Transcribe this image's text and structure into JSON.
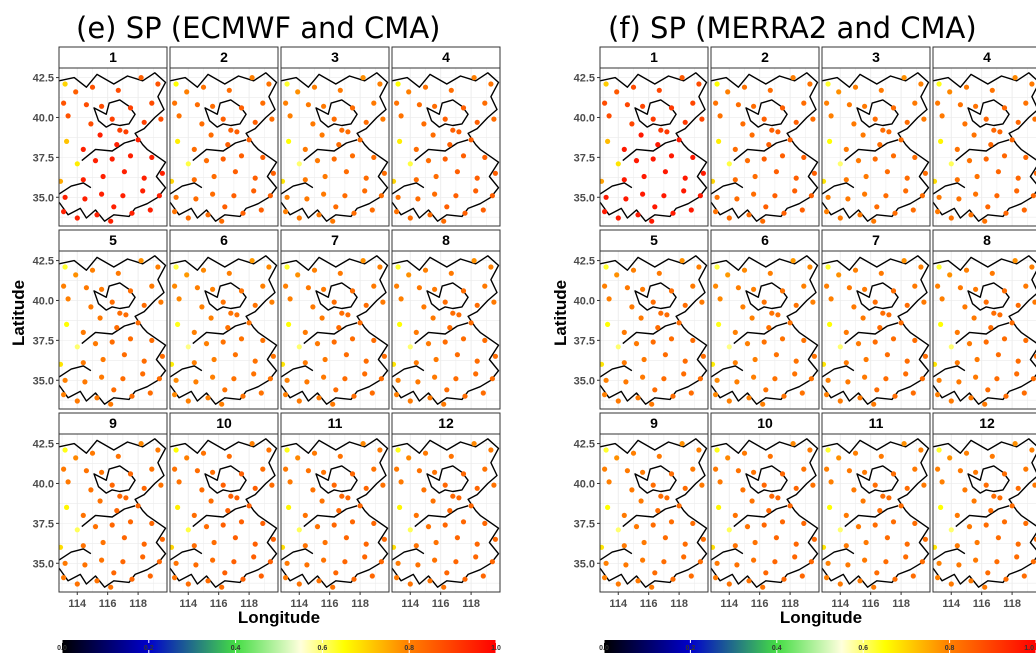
{
  "chart_data": [
    {
      "type": "scatter",
      "title": "(e) SP (ECMWF and CMA)",
      "xlabel": "Longitude",
      "ylabel": "Latitude",
      "facets": [
        "1",
        "2",
        "3",
        "4",
        "5",
        "6",
        "7",
        "8",
        "9",
        "10",
        "11",
        "12"
      ],
      "xlim": [
        112.8,
        119.9
      ],
      "ylim": [
        33.2,
        43.1
      ],
      "xticks": [
        114,
        116,
        118
      ],
      "yticks": [
        35.0,
        37.5,
        40.0,
        42.5
      ],
      "xtick_labels": [
        "114",
        "116",
        "118"
      ],
      "ytick_labels": [
        "35.0",
        "37.5",
        "40.0",
        "42.5"
      ],
      "colorbar": {
        "range": [
          0,
          1
        ],
        "tick_labels": [
          "0.0",
          "0.2",
          "0.4",
          "0.6",
          "0.8",
          "1.0"
        ]
      },
      "month_level": [
        0.85,
        0.8,
        0.78,
        0.8,
        0.78,
        0.77,
        0.78,
        0.78,
        0.79,
        0.8,
        0.79,
        0.79
      ]
    },
    {
      "type": "scatter",
      "title": "(f) SP (MERRA2 and CMA)",
      "xlabel": "Longitude",
      "ylabel": "Latitude",
      "facets": [
        "1",
        "2",
        "3",
        "4",
        "5",
        "6",
        "7",
        "8",
        "9",
        "10",
        "11",
        "12"
      ],
      "xlim": [
        112.8,
        119.9
      ],
      "ylim": [
        33.2,
        43.1
      ],
      "xticks": [
        114,
        116,
        118
      ],
      "yticks": [
        35.0,
        37.5,
        40.0,
        42.5
      ],
      "xtick_labels": [
        "114",
        "116",
        "118"
      ],
      "ytick_labels": [
        "35.0",
        "37.5",
        "40.0",
        "42.5"
      ],
      "colorbar": {
        "range": [
          0,
          1
        ],
        "tick_labels": [
          "0.0",
          "0.2",
          "0.4",
          "0.6",
          "0.8",
          "1.0"
        ]
      },
      "month_level": [
        0.86,
        0.8,
        0.78,
        0.79,
        0.78,
        0.77,
        0.78,
        0.78,
        0.78,
        0.79,
        0.78,
        0.78
      ]
    }
  ],
  "stations": [
    {
      "lon": 113.2,
      "lat": 42.1,
      "d": -0.15
    },
    {
      "lon": 113.9,
      "lat": 41.6,
      "d": 0.0
    },
    {
      "lon": 115.0,
      "lat": 41.9,
      "d": 0.02
    },
    {
      "lon": 116.7,
      "lat": 41.7,
      "d": 0.03
    },
    {
      "lon": 118.2,
      "lat": 42.5,
      "d": 0.0
    },
    {
      "lon": 119.3,
      "lat": 42.1,
      "d": 0.02
    },
    {
      "lon": 113.1,
      "lat": 40.9,
      "d": 0.02
    },
    {
      "lon": 114.6,
      "lat": 40.8,
      "d": 0.03
    },
    {
      "lon": 115.6,
      "lat": 40.7,
      "d": 0.03
    },
    {
      "lon": 117.5,
      "lat": 40.6,
      "d": 0.05
    },
    {
      "lon": 118.9,
      "lat": 40.9,
      "d": 0.03
    },
    {
      "lon": 113.4,
      "lat": 40.1,
      "d": 0.02
    },
    {
      "lon": 114.9,
      "lat": 39.6,
      "d": 0.03
    },
    {
      "lon": 116.3,
      "lat": 39.9,
      "d": 0.05
    },
    {
      "lon": 116.8,
      "lat": 39.2,
      "d": 0.05
    },
    {
      "lon": 117.2,
      "lat": 39.1,
      "d": 0.05
    },
    {
      "lon": 118.4,
      "lat": 39.7,
      "d": 0.05
    },
    {
      "lon": 119.5,
      "lat": 39.9,
      "d": 0.03
    },
    {
      "lon": 113.3,
      "lat": 38.5,
      "d": -0.13
    },
    {
      "lon": 114.4,
      "lat": 38.0,
      "d": 0.03
    },
    {
      "lon": 115.5,
      "lat": 38.9,
      "d": 0.03
    },
    {
      "lon": 116.6,
      "lat": 38.3,
      "d": 0.05
    },
    {
      "lon": 118.0,
      "lat": 38.6,
      "d": 0.05
    },
    {
      "lon": 114.0,
      "lat": 37.1,
      "d": -0.18
    },
    {
      "lon": 115.2,
      "lat": 37.3,
      "d": 0.03
    },
    {
      "lon": 116.3,
      "lat": 37.4,
      "d": 0.05
    },
    {
      "lon": 117.5,
      "lat": 37.6,
      "d": 0.05
    },
    {
      "lon": 118.9,
      "lat": 37.5,
      "d": 0.05
    },
    {
      "lon": 112.9,
      "lat": 36.0,
      "d": -0.1
    },
    {
      "lon": 114.4,
      "lat": 36.1,
      "d": 0.03
    },
    {
      "lon": 115.7,
      "lat": 36.3,
      "d": 0.03
    },
    {
      "lon": 117.1,
      "lat": 36.6,
      "d": 0.05
    },
    {
      "lon": 118.4,
      "lat": 36.2,
      "d": 0.05
    },
    {
      "lon": 119.6,
      "lat": 36.5,
      "d": 0.05
    },
    {
      "lon": 113.2,
      "lat": 35.0,
      "d": 0.02
    },
    {
      "lon": 114.5,
      "lat": 34.9,
      "d": 0.03
    },
    {
      "lon": 115.6,
      "lat": 35.2,
      "d": 0.03
    },
    {
      "lon": 117.0,
      "lat": 35.1,
      "d": 0.05
    },
    {
      "lon": 118.3,
      "lat": 35.4,
      "d": 0.05
    },
    {
      "lon": 119.4,
      "lat": 35.1,
      "d": 0.05
    },
    {
      "lon": 113.1,
      "lat": 34.1,
      "d": 0.02
    },
    {
      "lon": 114.0,
      "lat": 33.7,
      "d": 0.03
    },
    {
      "lon": 115.3,
      "lat": 33.9,
      "d": 0.03
    },
    {
      "lon": 116.4,
      "lat": 34.4,
      "d": 0.05
    },
    {
      "lon": 117.6,
      "lat": 34.0,
      "d": 0.05
    },
    {
      "lon": 118.8,
      "lat": 34.2,
      "d": 0.05
    },
    {
      "lon": 116.2,
      "lat": 33.5,
      "d": 0.03
    }
  ],
  "colors": {
    "gradient": [
      "#000000",
      "#0000cc",
      "#44dd44",
      "#ffffdd",
      "#ffff00",
      "#ff7f00",
      "#ff0000"
    ],
    "gradient_stops": [
      0.0,
      0.2,
      0.4,
      0.55,
      0.65,
      0.8,
      1.0
    ],
    "strip_fill": "#ffffff",
    "grid": "#ebebeb",
    "border": "#333333"
  }
}
